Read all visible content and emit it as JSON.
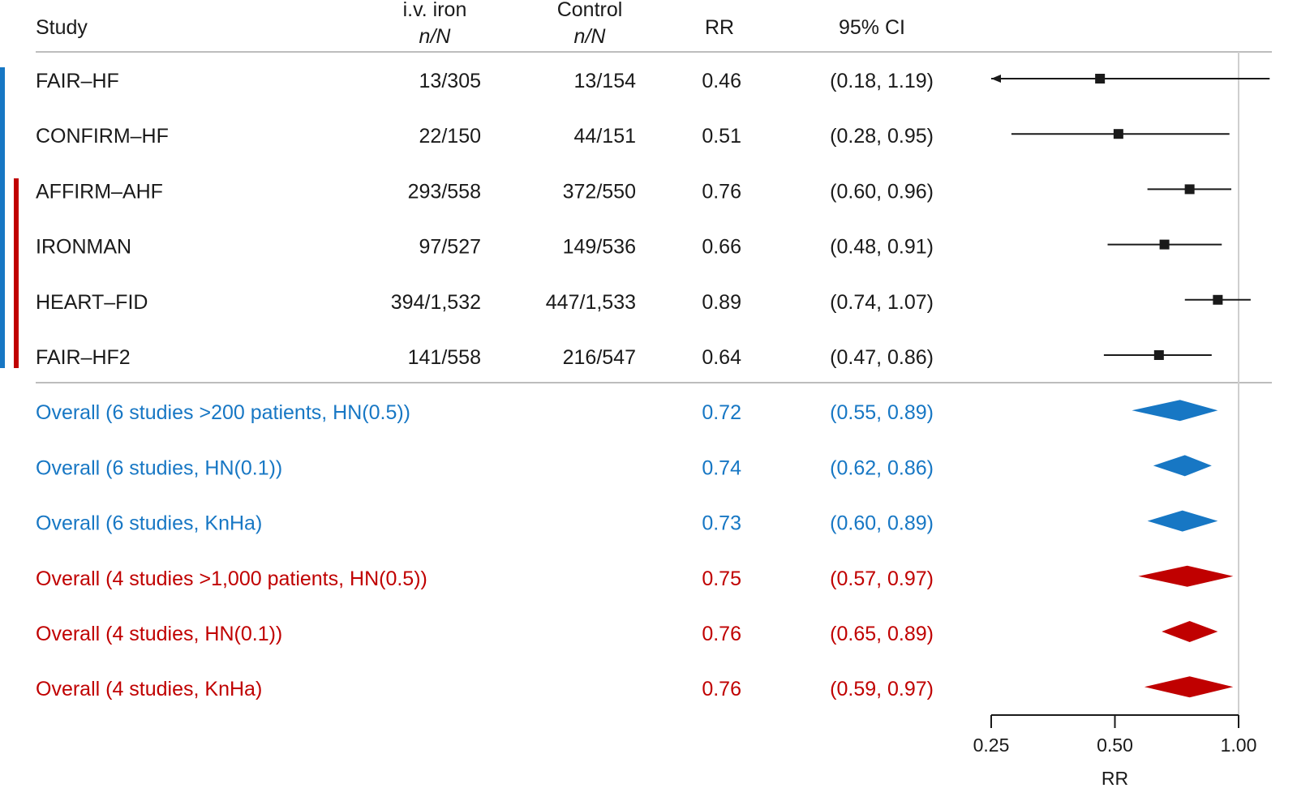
{
  "header": {
    "study": "Study",
    "iv_iron": "i.v. iron",
    "iv_iron_sub": "n/N",
    "control": "Control",
    "control_sub": "n/N",
    "rr": "RR",
    "ci": "95% CI"
  },
  "colors": {
    "text": "#1a1a1a",
    "blue": "#1777c4",
    "red": "#c00000",
    "rule": "#bdbdbd",
    "reference_line": "#cfcfcf"
  },
  "chart_data": {
    "type": "forest",
    "xlabel": "RR",
    "x_scale": "log",
    "xlim": [
      0.25,
      1.2
    ],
    "x_ticks": [
      0.25,
      0.5,
      1.0
    ],
    "x_tick_labels": [
      "0.25",
      "0.50",
      "1.00"
    ],
    "reference_line": 1.0,
    "studies": [
      {
        "name": "FAIR–HF",
        "iron": "13/305",
        "control": "13/154",
        "rr": 0.46,
        "rr_label": "0.46",
        "lo": 0.18,
        "hi": 1.19,
        "ci_label": "(0.18, 1.19)",
        "arrow_left": true
      },
      {
        "name": "CONFIRM–HF",
        "iron": "22/150",
        "control": "44/151",
        "rr": 0.51,
        "rr_label": "0.51",
        "lo": 0.28,
        "hi": 0.95,
        "ci_label": "(0.28, 0.95)",
        "arrow_left": false
      },
      {
        "name": "AFFIRM–AHF",
        "iron": "293/558",
        "control": "372/550",
        "rr": 0.76,
        "rr_label": "0.76",
        "lo": 0.6,
        "hi": 0.96,
        "ci_label": "(0.60, 0.96)",
        "arrow_left": false
      },
      {
        "name": "IRONMAN",
        "iron": "97/527",
        "control": "149/536",
        "rr": 0.66,
        "rr_label": "0.66",
        "lo": 0.48,
        "hi": 0.91,
        "ci_label": "(0.48, 0.91)",
        "arrow_left": false
      },
      {
        "name": "HEART–FID",
        "iron": "394/1,532",
        "control": "447/1,533",
        "rr": 0.89,
        "rr_label": "0.89",
        "lo": 0.74,
        "hi": 1.07,
        "ci_label": "(0.74, 1.07)",
        "arrow_left": false
      },
      {
        "name": "FAIR–HF2",
        "iron": "141/558",
        "control": "216/547",
        "rr": 0.64,
        "rr_label": "0.64",
        "lo": 0.47,
        "hi": 0.86,
        "ci_label": "(0.47, 0.86)",
        "arrow_left": false
      }
    ],
    "overall": [
      {
        "label": "Overall (6 studies >200 patients, HN(0.5))",
        "group": "blue",
        "rr": 0.72,
        "rr_label": "0.72",
        "lo": 0.55,
        "hi": 0.89,
        "ci_label": "(0.55, 0.89)"
      },
      {
        "label": "Overall (6 studies, HN(0.1))",
        "group": "blue",
        "rr": 0.74,
        "rr_label": "0.74",
        "lo": 0.62,
        "hi": 0.86,
        "ci_label": "(0.62, 0.86)"
      },
      {
        "label": "Overall (6 studies, KnHa)",
        "group": "blue",
        "rr": 0.73,
        "rr_label": "0.73",
        "lo": 0.6,
        "hi": 0.89,
        "ci_label": "(0.60, 0.89)"
      },
      {
        "label": "Overall (4 studies >1,000 patients, HN(0.5))",
        "group": "red",
        "rr": 0.75,
        "rr_label": "0.75",
        "lo": 0.57,
        "hi": 0.97,
        "ci_label": "(0.57, 0.97)"
      },
      {
        "label": "Overall (4 studies, HN(0.1))",
        "group": "red",
        "rr": 0.76,
        "rr_label": "0.76",
        "lo": 0.65,
        "hi": 0.89,
        "ci_label": "(0.65, 0.89)"
      },
      {
        "label": "Overall (4 studies, KnHa)",
        "group": "red",
        "rr": 0.76,
        "rr_label": "0.76",
        "lo": 0.59,
        "hi": 0.97,
        "ci_label": "(0.59, 0.97)"
      }
    ],
    "groups": [
      {
        "color": "blue",
        "studies": [
          "FAIR–HF",
          "CONFIRM–HF",
          "AFFIRM–AHF",
          "IRONMAN",
          "HEART–FID",
          "FAIR–HF2"
        ]
      },
      {
        "color": "red",
        "studies": [
          "AFFIRM–AHF",
          "IRONMAN",
          "HEART–FID",
          "FAIR–HF2"
        ]
      }
    ]
  }
}
